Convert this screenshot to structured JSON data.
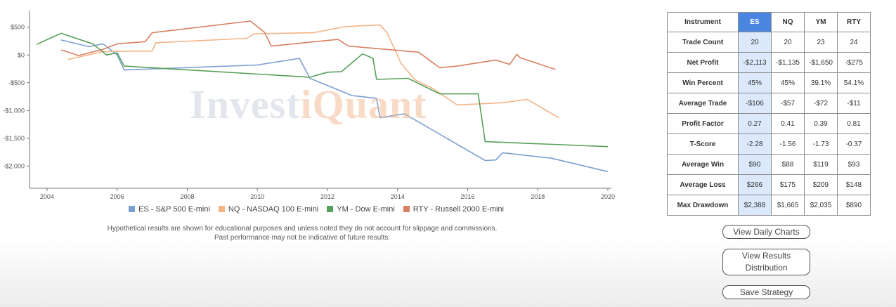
{
  "chart_data": {
    "type": "line",
    "xlim": [
      2003.5,
      2020.1
    ],
    "ylim": [
      -2400,
      800
    ],
    "x_ticks": [
      2004,
      2006,
      2008,
      2010,
      2012,
      2014,
      2016,
      2018,
      2020
    ],
    "y_ticks": [
      {
        "value": 500,
        "label": "$500"
      },
      {
        "value": 0,
        "label": "$0"
      },
      {
        "value": -500,
        "label": "-$500"
      },
      {
        "value": -1000,
        "label": "-$1,000"
      },
      {
        "value": -1500,
        "label": "-$1,500"
      },
      {
        "value": -2000,
        "label": "-$2,000"
      }
    ],
    "series": [
      {
        "name": "ES - S&P 500 E-mini",
        "color": "#7b9fd3",
        "points": [
          [
            2004.4,
            270
          ],
          [
            2005.2,
            150
          ],
          [
            2005.6,
            200
          ],
          [
            2006.0,
            0
          ],
          [
            2006.2,
            -270
          ],
          [
            2010.0,
            -180
          ],
          [
            2011.2,
            -60
          ],
          [
            2011.5,
            -420
          ],
          [
            2012.7,
            -730
          ],
          [
            2013.4,
            -780
          ],
          [
            2013.5,
            -1130
          ],
          [
            2014.2,
            -1060
          ],
          [
            2016.5,
            -1900
          ],
          [
            2016.8,
            -1890
          ],
          [
            2017.0,
            -1760
          ],
          [
            2018.4,
            -1860
          ],
          [
            2020.0,
            -2100
          ]
        ]
      },
      {
        "name": "NQ - NASDAQ 100 E-mini",
        "color": "#f4b385",
        "points": [
          [
            2004.6,
            -80
          ],
          [
            2005.6,
            60
          ],
          [
            2006.5,
            70
          ],
          [
            2007.0,
            70
          ],
          [
            2007.1,
            220
          ],
          [
            2009.7,
            300
          ],
          [
            2009.9,
            380
          ],
          [
            2011.6,
            400
          ],
          [
            2012.5,
            510
          ],
          [
            2013.5,
            540
          ],
          [
            2013.7,
            400
          ],
          [
            2014.1,
            -150
          ],
          [
            2014.5,
            -450
          ],
          [
            2015.0,
            -600
          ],
          [
            2015.7,
            -900
          ],
          [
            2017.0,
            -860
          ],
          [
            2017.7,
            -800
          ],
          [
            2018.6,
            -1130
          ]
        ]
      },
      {
        "name": "YM - Dow E-mini",
        "color": "#57a05a",
        "points": [
          [
            2003.7,
            190
          ],
          [
            2004.4,
            390
          ],
          [
            2005.3,
            200
          ],
          [
            2005.7,
            0
          ],
          [
            2006.0,
            40
          ],
          [
            2006.2,
            -200
          ],
          [
            2011.5,
            -400
          ],
          [
            2012.0,
            -310
          ],
          [
            2012.4,
            -300
          ],
          [
            2013.0,
            20
          ],
          [
            2013.3,
            -60
          ],
          [
            2013.4,
            -440
          ],
          [
            2014.3,
            -420
          ],
          [
            2015.2,
            -700
          ],
          [
            2016.3,
            -700
          ],
          [
            2016.5,
            -1560
          ],
          [
            2020.0,
            -1650
          ]
        ]
      },
      {
        "name": "RTY - Russell 2000 E-mini",
        "color": "#d98063",
        "points": [
          [
            2004.4,
            90
          ],
          [
            2004.9,
            -10
          ],
          [
            2005.6,
            100
          ],
          [
            2006.0,
            200
          ],
          [
            2006.8,
            240
          ],
          [
            2007.0,
            400
          ],
          [
            2009.8,
            610
          ],
          [
            2010.2,
            410
          ],
          [
            2010.4,
            160
          ],
          [
            2012.3,
            280
          ],
          [
            2012.6,
            160
          ],
          [
            2014.6,
            50
          ],
          [
            2015.2,
            -230
          ],
          [
            2015.7,
            -200
          ],
          [
            2016.8,
            -90
          ],
          [
            2017.2,
            -170
          ],
          [
            2017.4,
            10
          ],
          [
            2017.5,
            -50
          ],
          [
            2018.5,
            -260
          ]
        ]
      }
    ]
  },
  "watermark": {
    "part1": "Invest",
    "part2": "iQuant"
  },
  "disclaimer": {
    "line1": "Hypothetical results are shown for educational purposes and unless noted they do not account for slippage and commissions.",
    "line2": "Past performance may not be indicative of future results."
  },
  "table": {
    "header": [
      "Instrument",
      "ES",
      "NQ",
      "YM",
      "RTY"
    ],
    "rows": [
      {
        "label": "Trade Count",
        "values": [
          "20",
          "20",
          "23",
          "24"
        ]
      },
      {
        "label": "Net Profit",
        "values": [
          "-$2,113",
          "-$1,135",
          "-$1,650",
          "-$275"
        ]
      },
      {
        "label": "Win Percent",
        "values": [
          "45%",
          "45%",
          "39.1%",
          "54.1%"
        ]
      },
      {
        "label": "Average Trade",
        "values": [
          "-$106",
          "-$57",
          "-$72",
          "-$11"
        ]
      },
      {
        "label": "Profit Factor",
        "values": [
          "0.27",
          "0.41",
          "0.39",
          "0.81"
        ]
      },
      {
        "label": "T-Score",
        "values": [
          "-2.28",
          "-1.56",
          "-1.73",
          "-0.37"
        ]
      },
      {
        "label": "Average Win",
        "values": [
          "$90",
          "$88",
          "$119",
          "$93"
        ]
      },
      {
        "label": "Average Loss",
        "values": [
          "$266",
          "$175",
          "$209",
          "$148"
        ]
      },
      {
        "label": "Max Drawdown",
        "values": [
          "$2,388",
          "$1,665",
          "$2,035",
          "$890"
        ]
      }
    ]
  },
  "buttons": {
    "daily_charts": "View Daily Charts",
    "results_line1": "View Results",
    "results_line2": "Distribution",
    "save": "Save Strategy"
  }
}
